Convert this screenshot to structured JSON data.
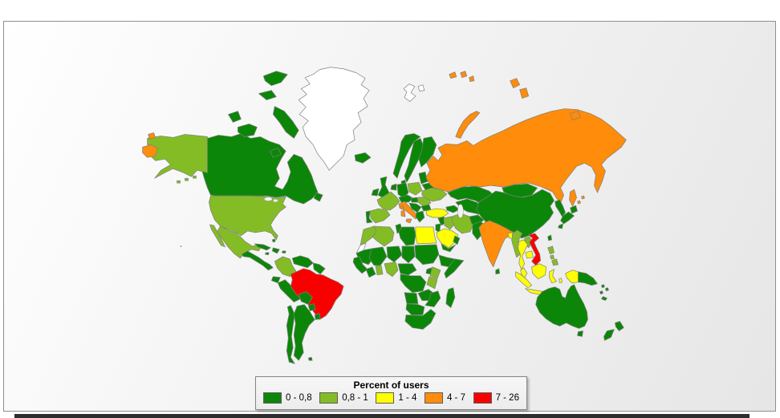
{
  "legend": {
    "title": "Percent of users",
    "no_data_color": "#FFFFFF",
    "items": [
      {
        "label": "0 - 0,8",
        "bucket": "c1",
        "color": "#0C8608"
      },
      {
        "label": "0,8 - 1",
        "bucket": "c2",
        "color": "#84BC26"
      },
      {
        "label": "1 - 4",
        "bucket": "c3",
        "color": "#FFFF00"
      },
      {
        "label": "4 - 7",
        "bucket": "c4",
        "color": "#FF8C0A"
      },
      {
        "label": "7 - 26",
        "bucket": "c5",
        "color": "#F90000"
      }
    ]
  },
  "map": {
    "border_color": "#7F7F7F",
    "regions": {
      "greenland": "none",
      "svalbard": "none",
      "western-sahara": "none",
      "russia": "c4",
      "chukotka-wrap": "c4",
      "wrangel-island": "c4",
      "novaya-zemlya": "c4",
      "severnaya-zemlya": "c4",
      "franz-josef-land": "c4",
      "new-siberian-islands": "c4",
      "sakhalin": "c4",
      "kuril-islands": "c4",
      "italy": "c4",
      "sicily": "c4",
      "sardinia": "c4",
      "corsica": "c4",
      "india": "c4",
      "brazil": "c5",
      "vietnam": "c5",
      "turkey": "c3",
      "egypt": "c3",
      "saudi-arabia": "c3",
      "bangladesh": "c3",
      "thailand": "c3",
      "cambodia": "c3",
      "malay-peninsula": "c3",
      "sumatra": "c3",
      "java": "c3",
      "borneo": "c3",
      "sulawesi": "c3",
      "bali": "c3",
      "lesser-sunda": "c3",
      "moluccas": "c3",
      "west-papua": "c3",
      "alaska": "c2",
      "usa": "c2",
      "mexico": "c2",
      "baja-california": "c2",
      "colombia": "c2",
      "france": "c2",
      "spain": "c2",
      "poland": "c2",
      "romania": "c2",
      "ukraine": "c2",
      "morocco": "c2",
      "algeria": "c2",
      "ghana": "c2",
      "nigeria": "c2",
      "kenya": "c2",
      "tanzania": "c2",
      "iraq": "c2",
      "iran": "c2",
      "myanmar": "c2",
      "laos": "c2",
      "luzon": "c2",
      "visayas": "c2",
      "mindanao": "c2",
      "canada": "c1",
      "victoria-island": "c1",
      "baffin-island": "c1",
      "banks-island": "c1",
      "ellesmere-island": "c1",
      "devon-island": "c1",
      "southampton-island": "c1",
      "newfoundland": "c1",
      "iceland": "c1",
      "uk": "c1",
      "ireland": "c1",
      "norway": "c1",
      "sweden": "c1",
      "finland": "c1",
      "denmark": "c1",
      "baltics": "c1",
      "belarus": "c1",
      "germany": "c1",
      "benelux": "c1",
      "portugal": "c1",
      "alpine-states": "c1",
      "hungary": "c1",
      "balkans": "c1",
      "bulgaria": "c1",
      "greece": "c1",
      "caucasus": "c1",
      "syria": "c1",
      "levant": "c1",
      "yemen": "c1",
      "oman": "c1",
      "afghanistan": "c1",
      "pakistan": "c1",
      "central-asia": "c1",
      "kazakhstan": "c1",
      "mongolia": "c1",
      "china": "c1",
      "korea": "c1",
      "japan-hokkaido": "c1",
      "japan-honshu": "c1",
      "japan-kyushu": "c1",
      "taiwan": "c1",
      "sri-lanka": "c1",
      "central-america": "c1",
      "cuba": "c1",
      "hispaniola": "c1",
      "jamaica": "c1",
      "puerto-rico": "c1",
      "bahamas": "c1",
      "venezuela": "c1",
      "guyanas": "c1",
      "ecuador": "c1",
      "peru": "c1",
      "bolivia": "c1",
      "paraguay": "c1",
      "uruguay": "c1",
      "argentina": "c1",
      "chile": "c1",
      "falklands": "c1",
      "tunisia": "c1",
      "libya": "c1",
      "mauritania": "c1",
      "mali": "c1",
      "senegal-guinea": "c1",
      "ivory-coast": "c1",
      "niger": "c1",
      "chad": "c1",
      "sudan": "c1",
      "cameroon-car": "c1",
      "ethiopia": "c1",
      "somalia": "c1",
      "uganda": "c1",
      "drc": "c1",
      "angola": "c1",
      "zambia": "c1",
      "mozambique-zimbabwe": "c1",
      "namibia-botswana": "c1",
      "south-africa": "c1",
      "madagascar": "c1",
      "png": "c1",
      "solomon-islands": "c1",
      "new-caledonia": "c1",
      "vanuatu": "c1",
      "east-timor": "c1",
      "australia": "c1",
      "tasmania": "c1",
      "nz-north": "c1",
      "nz-south": "c1"
    }
  }
}
